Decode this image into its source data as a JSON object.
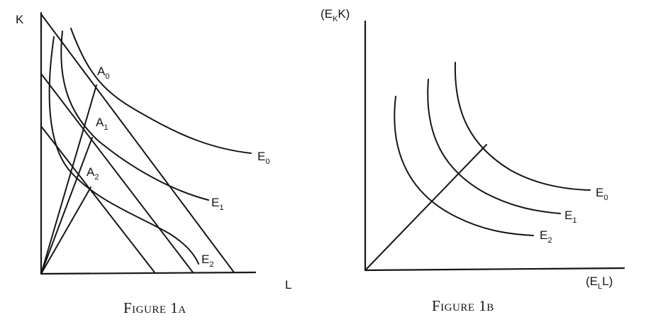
{
  "figure_1a": {
    "caption": "Figure 1a",
    "y_axis_label": "K",
    "x_axis_label": "L",
    "isoquants": [
      {
        "base": "E",
        "sub": "0"
      },
      {
        "base": "E",
        "sub": "1"
      },
      {
        "base": "E",
        "sub": "2"
      }
    ],
    "points": [
      {
        "base": "A",
        "sub": "0"
      },
      {
        "base": "A",
        "sub": "1"
      },
      {
        "base": "A",
        "sub": "2"
      }
    ]
  },
  "figure_1b": {
    "caption": "Figure 1b",
    "y_axis_label": {
      "open": "(E",
      "sub": "K",
      "close": "K)"
    },
    "x_axis_label": {
      "open": "(E",
      "sub": "L",
      "close": "L)"
    },
    "isoquants": [
      {
        "base": "E",
        "sub": "0"
      },
      {
        "base": "E",
        "sub": "1"
      },
      {
        "base": "E",
        "sub": "2"
      }
    ]
  }
}
